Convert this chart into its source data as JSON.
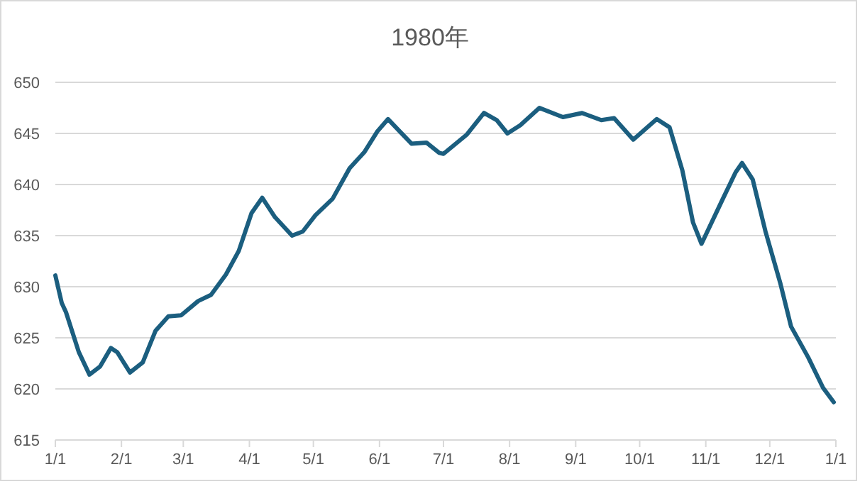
{
  "chart_data": {
    "type": "line",
    "title": "1980年",
    "x": [
      "1980-01-01",
      "1980-01-04",
      "1980-01-06",
      "1980-01-12",
      "1980-01-17",
      "1980-01-22",
      "1980-01-27",
      "1980-01-30",
      "1980-02-05",
      "1980-02-11",
      "1980-02-17",
      "1980-02-23",
      "1980-02-29",
      "1980-03-08",
      "1980-03-14",
      "1980-03-21",
      "1980-03-27",
      "1980-04-02",
      "1980-04-07",
      "1980-04-13",
      "1980-04-21",
      "1980-04-26",
      "1980-05-02",
      "1980-05-10",
      "1980-05-18",
      "1980-05-25",
      "1980-05-31",
      "1980-06-05",
      "1980-06-10",
      "1980-06-16",
      "1980-06-23",
      "1980-06-29",
      "1980-07-01",
      "1980-07-12",
      "1980-07-20",
      "1980-07-26",
      "1980-07-31",
      "1980-08-06",
      "1980-08-15",
      "1980-08-26",
      "1980-09-04",
      "1980-09-13",
      "1980-09-19",
      "1980-09-28",
      "1980-10-09",
      "1980-10-15",
      "1980-10-21",
      "1980-10-26",
      "1980-10-30",
      "1980-11-09",
      "1980-11-15",
      "1980-11-18",
      "1980-11-23",
      "1980-11-29",
      "1980-12-06",
      "1980-12-11",
      "1980-12-19",
      "1980-12-26",
      "1980-12-31"
    ],
    "series": [
      {
        "color": "#1b5e7f",
        "values": [
          631.1,
          628.4,
          627.5,
          623.6,
          621.4,
          622.2,
          624.0,
          623.6,
          621.6,
          622.6,
          625.7,
          627.1,
          627.2,
          628.6,
          629.2,
          631.2,
          633.5,
          637.2,
          638.7,
          636.8,
          635.0,
          635.4,
          637.0,
          638.6,
          641.6,
          643.2,
          645.2,
          646.4,
          645.3,
          644.0,
          644.1,
          643.1,
          643.0,
          644.9,
          647.0,
          646.3,
          645.0,
          645.8,
          647.5,
          646.6,
          647.0,
          646.3,
          646.5,
          644.4,
          646.4,
          645.6,
          641.4,
          636.3,
          634.2,
          638.6,
          641.2,
          642.1,
          640.5,
          635.4,
          630.3,
          626.1,
          623.1,
          620.1,
          618.7
        ]
      }
    ],
    "xlim": [
      "1980-01-01",
      "1981-01-01"
    ],
    "xticks": [
      {
        "value": "1980-01-01",
        "label": "1/1"
      },
      {
        "value": "1980-02-01",
        "label": "2/1"
      },
      {
        "value": "1980-03-01",
        "label": "3/1"
      },
      {
        "value": "1980-04-01",
        "label": "4/1"
      },
      {
        "value": "1980-05-01",
        "label": "5/1"
      },
      {
        "value": "1980-06-01",
        "label": "6/1"
      },
      {
        "value": "1980-07-01",
        "label": "7/1"
      },
      {
        "value": "1980-08-01",
        "label": "8/1"
      },
      {
        "value": "1980-09-01",
        "label": "9/1"
      },
      {
        "value": "1980-10-01",
        "label": "10/1"
      },
      {
        "value": "1980-11-01",
        "label": "11/1"
      },
      {
        "value": "1980-12-01",
        "label": "12/1"
      },
      {
        "value": "1981-01-01",
        "label": "1/1"
      }
    ],
    "ylim": [
      615,
      650
    ],
    "yticks": [
      615,
      620,
      625,
      630,
      635,
      640,
      645,
      650
    ],
    "grid": "y",
    "marker": "none",
    "line_style": "solid"
  }
}
